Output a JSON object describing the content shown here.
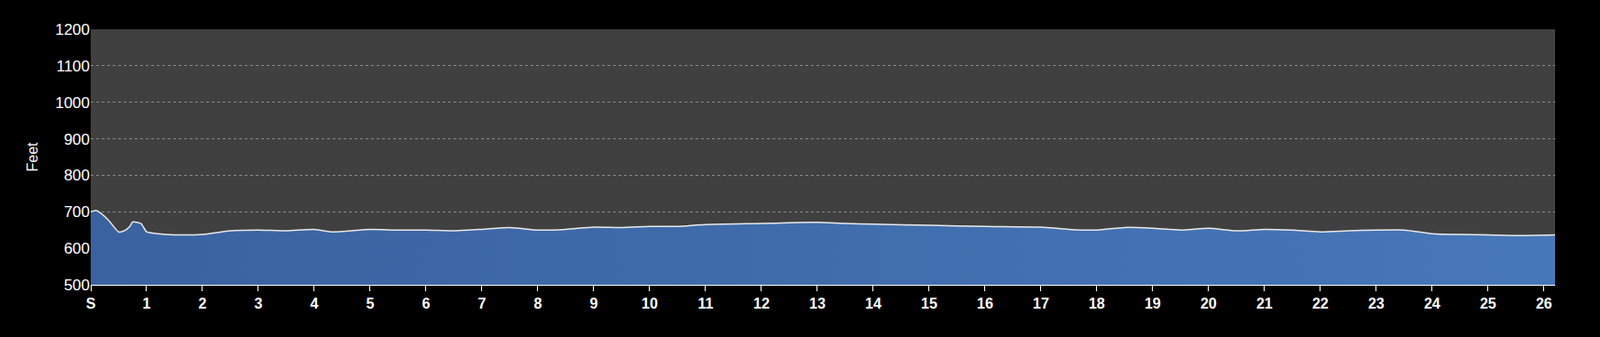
{
  "chart_data": {
    "type": "area",
    "y_label": "Feet",
    "x": [
      0,
      0.1,
      0.3,
      0.5,
      0.6,
      0.7,
      0.75,
      0.9,
      1.0,
      1.2,
      1.5,
      2,
      2.5,
      3,
      3.5,
      4,
      4.3,
      5,
      5.5,
      6,
      6.5,
      7,
      7.5,
      8,
      8.5,
      9,
      9.5,
      10,
      10.5,
      11,
      12,
      12.5,
      13,
      13.5,
      14,
      15,
      16,
      17,
      17.5,
      18,
      18.5,
      19,
      19.5,
      20,
      20.5,
      21,
      21.5,
      22,
      22.5,
      23,
      23.5,
      24,
      24.5,
      25,
      25.5,
      26.2
    ],
    "values": [
      700,
      703,
      680,
      645,
      648,
      660,
      672,
      668,
      645,
      640,
      637,
      638,
      648,
      650,
      648,
      652,
      645,
      652,
      650,
      650,
      648,
      652,
      657,
      650,
      652,
      658,
      657,
      660,
      660,
      665,
      668,
      670,
      671,
      668,
      666,
      663,
      660,
      658,
      652,
      650,
      657,
      655,
      650,
      655,
      648,
      652,
      650,
      645,
      648,
      650,
      650,
      640,
      638,
      637,
      635,
      637
    ],
    "color": "#4677b8",
    "xlim": [
      0,
      26.2
    ],
    "xticks": [
      {
        "value": 0,
        "label": "S"
      },
      1,
      2,
      3,
      4,
      5,
      6,
      7,
      8,
      9,
      10,
      11,
      12,
      13,
      14,
      15,
      16,
      17,
      18,
      19,
      20,
      21,
      22,
      23,
      24,
      25,
      26
    ],
    "ylim": [
      500,
      1200
    ],
    "yticks": [
      500,
      600,
      700,
      800,
      900,
      1000,
      1100,
      1200
    ],
    "grid": "y"
  }
}
